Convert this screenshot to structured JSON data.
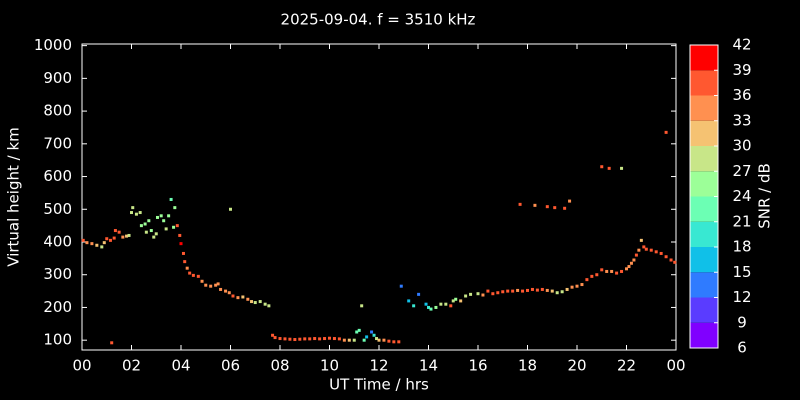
{
  "chart_data": {
    "type": "scatter",
    "title": "2025-09-04. f = 3510 kHz",
    "xlabel": "UT Time / hrs",
    "ylabel": "Virtual height / km",
    "xlim": [
      0,
      24
    ],
    "ylim": [
      70,
      1005
    ],
    "xticks": [
      {
        "value": 0,
        "label": "00"
      },
      {
        "value": 2,
        "label": "02"
      },
      {
        "value": 4,
        "label": "04"
      },
      {
        "value": 6,
        "label": "06"
      },
      {
        "value": 8,
        "label": "08"
      },
      10,
      12,
      14,
      16,
      18,
      20,
      22,
      {
        "value": 24,
        "label": "00"
      }
    ],
    "yticks": [
      100,
      200,
      300,
      400,
      500,
      600,
      700,
      800,
      900,
      1000
    ],
    "x": [
      0.05,
      0.2,
      0.4,
      0.6,
      0.8,
      0.9,
      1.0,
      1.15,
      1.2,
      1.3,
      1.35,
      1.5,
      1.65,
      1.8,
      1.9,
      2.0,
      2.05,
      2.2,
      2.35,
      2.4,
      2.55,
      2.6,
      2.7,
      2.8,
      2.9,
      3.0,
      3.05,
      3.2,
      3.3,
      3.4,
      3.5,
      3.6,
      3.7,
      3.75,
      3.85,
      3.95,
      4.0,
      4.1,
      4.15,
      4.25,
      4.35,
      4.5,
      4.7,
      4.85,
      5.0,
      5.2,
      5.4,
      5.5,
      5.6,
      5.8,
      5.95,
      6.0,
      6.1,
      6.3,
      6.5,
      6.7,
      6.85,
      7.0,
      7.2,
      7.4,
      7.55,
      7.7,
      7.8,
      8.0,
      8.2,
      8.4,
      8.6,
      8.8,
      9.0,
      9.2,
      9.4,
      9.6,
      9.8,
      10.0,
      10.2,
      10.4,
      10.6,
      10.8,
      11.0,
      11.1,
      11.2,
      11.3,
      11.4,
      11.5,
      11.7,
      11.8,
      11.9,
      12.0,
      12.2,
      12.4,
      12.6,
      12.8,
      12.9,
      13.2,
      13.4,
      13.6,
      13.9,
      14.0,
      14.1,
      14.3,
      14.5,
      14.7,
      14.9,
      15.0,
      15.1,
      15.3,
      15.5,
      15.7,
      16.0,
      16.2,
      16.4,
      16.6,
      16.8,
      17.0,
      17.2,
      17.4,
      17.6,
      17.8,
      18.0,
      18.2,
      18.4,
      18.6,
      18.8,
      19.0,
      19.2,
      19.4,
      19.6,
      19.8,
      20.0,
      20.2,
      20.4,
      20.6,
      20.8,
      21.0,
      21.2,
      21.4,
      21.6,
      21.8,
      22.0,
      22.1,
      22.2,
      22.3,
      22.4,
      22.5,
      22.6,
      22.7,
      22.8,
      23.0,
      23.2,
      23.4,
      23.6,
      23.8,
      23.95,
      17.7,
      18.3,
      18.8,
      19.1,
      19.5,
      19.7,
      21.0,
      21.3,
      21.8,
      23.6
    ],
    "y": [
      405,
      398,
      395,
      390,
      385,
      398,
      410,
      405,
      92,
      412,
      435,
      430,
      415,
      418,
      420,
      490,
      505,
      485,
      490,
      450,
      455,
      430,
      465,
      435,
      415,
      425,
      475,
      480,
      465,
      440,
      480,
      530,
      445,
      505,
      450,
      420,
      395,
      365,
      340,
      320,
      305,
      298,
      295,
      280,
      268,
      265,
      268,
      272,
      255,
      250,
      245,
      500,
      235,
      230,
      232,
      225,
      218,
      215,
      218,
      210,
      205,
      115,
      108,
      105,
      104,
      103,
      102,
      103,
      104,
      104,
      105,
      104,
      105,
      106,
      105,
      104,
      100,
      100,
      100,
      125,
      130,
      205,
      100,
      110,
      125,
      115,
      105,
      100,
      100,
      97,
      95,
      95,
      265,
      220,
      205,
      240,
      210,
      200,
      195,
      200,
      210,
      210,
      205,
      220,
      225,
      220,
      235,
      240,
      242,
      238,
      250,
      242,
      245,
      248,
      250,
      250,
      252,
      250,
      252,
      255,
      253,
      255,
      252,
      250,
      245,
      248,
      255,
      262,
      265,
      270,
      285,
      295,
      300,
      315,
      310,
      310,
      305,
      310,
      318,
      325,
      335,
      345,
      360,
      375,
      405,
      385,
      378,
      375,
      370,
      365,
      355,
      345,
      338,
      515,
      512,
      508,
      505,
      503,
      525,
      630,
      625,
      625,
      735
    ],
    "snr": [
      36,
      33,
      33,
      30,
      27,
      30,
      36,
      36,
      36,
      36,
      36,
      36,
      33,
      30,
      27,
      27,
      27,
      27,
      27,
      24,
      24,
      27,
      24,
      24,
      27,
      27,
      24,
      24,
      24,
      27,
      24,
      21,
      24,
      24,
      36,
      36,
      39,
      36,
      36,
      33,
      36,
      36,
      36,
      33,
      33,
      33,
      33,
      33,
      33,
      33,
      33,
      27,
      36,
      33,
      30,
      33,
      30,
      27,
      27,
      27,
      27,
      36,
      36,
      36,
      36,
      36,
      36,
      36,
      36,
      36,
      36,
      36,
      36,
      36,
      36,
      36,
      33,
      30,
      27,
      21,
      21,
      27,
      21,
      15,
      12,
      18,
      27,
      30,
      33,
      36,
      36,
      36,
      12,
      15,
      18,
      12,
      15,
      18,
      21,
      24,
      27,
      27,
      36,
      27,
      24,
      30,
      27,
      27,
      27,
      33,
      36,
      36,
      36,
      36,
      36,
      36,
      33,
      36,
      36,
      36,
      36,
      36,
      33,
      30,
      27,
      27,
      30,
      33,
      33,
      33,
      36,
      36,
      36,
      36,
      33,
      33,
      36,
      36,
      33,
      33,
      33,
      33,
      36,
      33,
      30,
      36,
      36,
      36,
      36,
      36,
      36,
      36,
      36,
      36,
      33,
      36,
      36,
      36,
      33,
      36,
      36,
      27,
      36
    ],
    "colorbar": {
      "label": "SNR / dB",
      "ticks": [
        6,
        9,
        12,
        15,
        18,
        21,
        24,
        27,
        30,
        33,
        36,
        39,
        42
      ],
      "colors": [
        "#8000ff",
        "#5a3cff",
        "#2f7bff",
        "#10c0e8",
        "#38e8d2",
        "#6cffb4",
        "#9cff98",
        "#c8e688",
        "#f5c272",
        "#ff9050",
        "#ff5830",
        "#ff0000"
      ]
    }
  }
}
